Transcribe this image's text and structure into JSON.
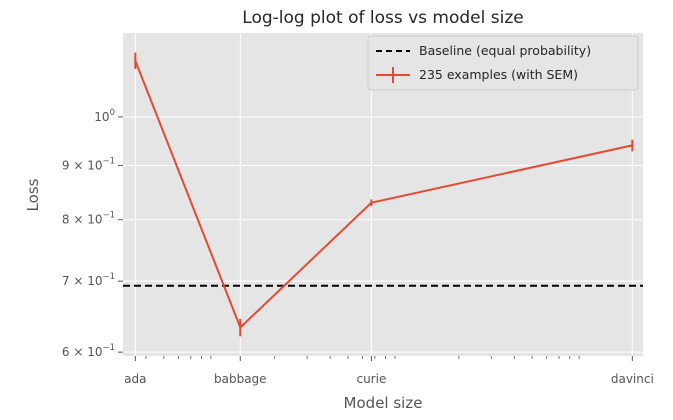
{
  "chart_data": {
    "type": "line",
    "title": "Log-log plot of loss vs model size",
    "xlabel": "Model size",
    "ylabel": "Loss",
    "x_scale": "log",
    "y_scale": "log",
    "categories": [
      "ada",
      "babbage",
      "curie",
      "davinci"
    ],
    "x_values": [
      350,
      1300,
      6700,
      175000
    ],
    "xlim": [
      300,
      200000
    ],
    "ylim": [
      0.595,
      1.2
    ],
    "y_ticks": [
      {
        "value": 1.0,
        "base": "10",
        "exp": "0"
      },
      {
        "value": 0.9,
        "base": "9 × 10",
        "exp": "−1"
      },
      {
        "value": 0.8,
        "base": "8 × 10",
        "exp": "−1"
      },
      {
        "value": 0.7,
        "base": "7 × 10",
        "exp": "−1"
      },
      {
        "value": 0.6,
        "base": "6 × 10",
        "exp": "−1"
      }
    ],
    "grid": true,
    "legend_position": "top-right",
    "background_color": "#e5e5e5",
    "baseline": {
      "name": "Baseline (equal probability)",
      "value": 0.693,
      "color": "#000000",
      "style": "dashed"
    },
    "series": [
      {
        "name": "235 examples (with SEM)",
        "color": "#e24a33",
        "values": [
          1.13,
          0.633,
          0.83,
          0.94
        ],
        "sem": [
          0.02,
          0.012,
          0.006,
          0.012
        ]
      }
    ]
  }
}
